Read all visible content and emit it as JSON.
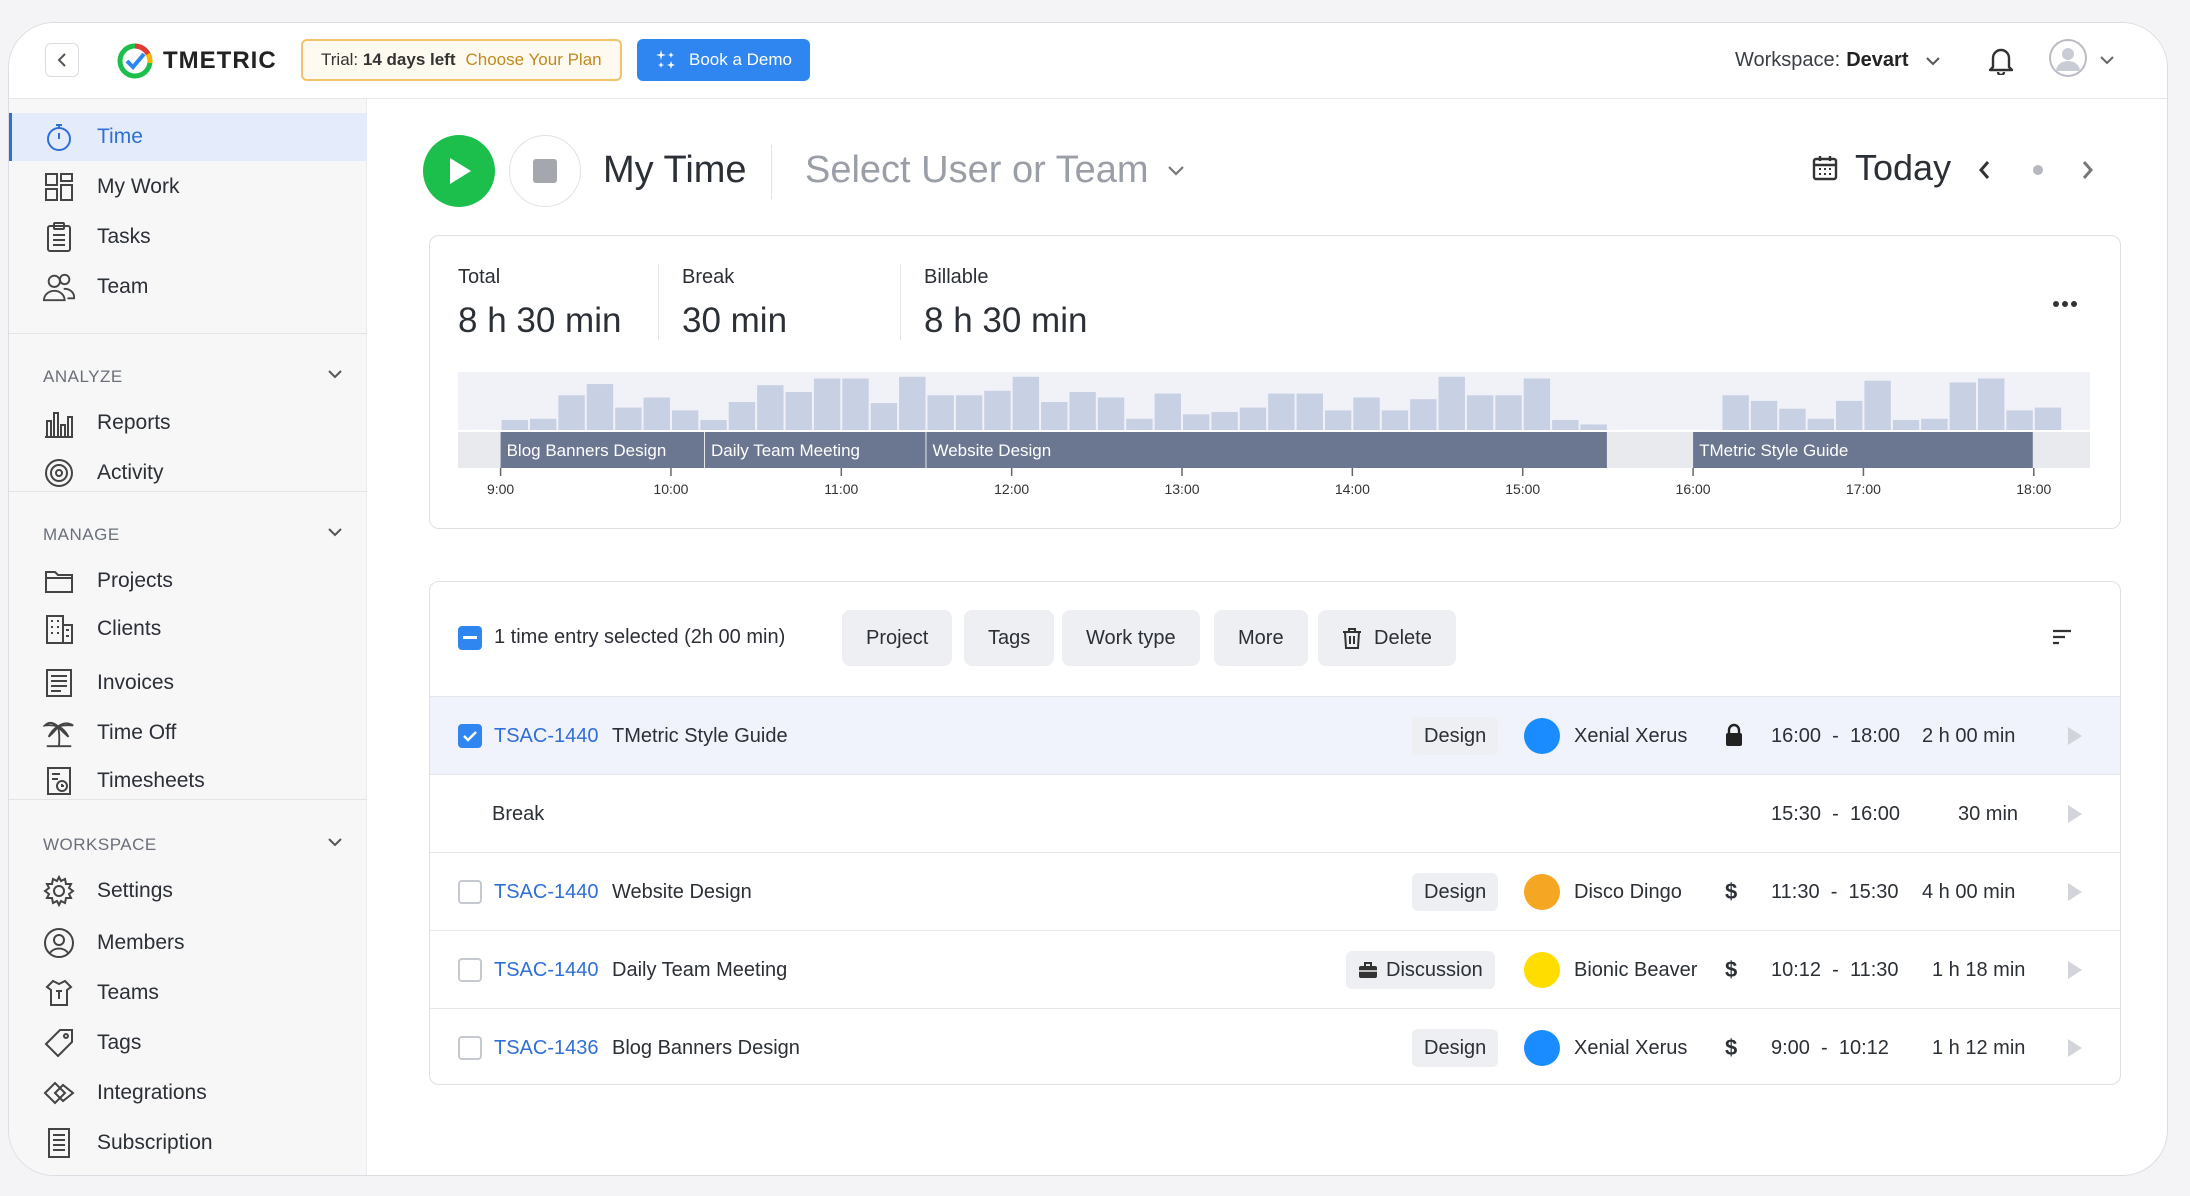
{
  "topbar": {
    "brand": "TMETRIC",
    "trial_prefix": "Trial:",
    "trial_days": "14 days left",
    "trial_link": "Choose Your Plan",
    "demo_label": "Book a Demo",
    "workspace_label": "Workspace:",
    "workspace_name": "Devart"
  },
  "sidebar": {
    "main": [
      {
        "label": "Time",
        "icon": "stopwatch-icon"
      },
      {
        "label": "My Work",
        "icon": "dashboard-icon"
      },
      {
        "label": "Tasks",
        "icon": "clipboard-icon"
      },
      {
        "label": "Team",
        "icon": "people-icon"
      }
    ],
    "analyze_title": "ANALYZE",
    "analyze": [
      {
        "label": "Reports",
        "icon": "bar-chart-icon"
      },
      {
        "label": "Activity",
        "icon": "activity-icon"
      }
    ],
    "manage_title": "MANAGE",
    "manage": [
      {
        "label": "Projects",
        "icon": "folder-icon"
      },
      {
        "label": "Clients",
        "icon": "building-icon"
      },
      {
        "label": "Invoices",
        "icon": "invoice-icon"
      },
      {
        "label": "Time Off",
        "icon": "palm-tree-icon"
      },
      {
        "label": "Timesheets",
        "icon": "timesheet-icon"
      }
    ],
    "workspace_title": "WORKSPACE",
    "workspace": [
      {
        "label": "Settings",
        "icon": "gear-icon"
      },
      {
        "label": "Members",
        "icon": "member-icon"
      },
      {
        "label": "Teams",
        "icon": "teams-icon"
      },
      {
        "label": "Tags",
        "icon": "tag-icon"
      },
      {
        "label": "Integrations",
        "icon": "integrations-icon"
      },
      {
        "label": "Subscription",
        "icon": "subscription-icon"
      }
    ]
  },
  "header": {
    "title": "My Time",
    "user_select": "Select User or Team",
    "date_label": "Today"
  },
  "summary": {
    "total_label": "Total",
    "total_value": "8 h 30 min",
    "break_label": "Break",
    "break_value": "30 min",
    "billable_label": "Billable",
    "billable_value": "8 h 30 min"
  },
  "chart_data": {
    "type": "bar",
    "title": "",
    "xlabel": "",
    "ylabel": "",
    "tick_labels": [
      "9:00",
      "10:00",
      "11:00",
      "12:00",
      "13:00",
      "14:00",
      "15:00",
      "16:00",
      "17:00",
      "18:00"
    ],
    "x_range_hours": [
      8.75,
      18.33
    ],
    "activity_bars": {
      "start_hour": 9.0,
      "slot_minutes": 10,
      "values": [
        0.18,
        0.2,
        0.62,
        0.82,
        0.4,
        0.58,
        0.35,
        0.18,
        0.5,
        0.8,
        0.68,
        0.92,
        0.92,
        0.48,
        0.95,
        0.62,
        0.62,
        0.7,
        0.95,
        0.5,
        0.68,
        0.58,
        0.2,
        0.65,
        0.28,
        0.32,
        0.4,
        0.65,
        0.65,
        0.35,
        0.58,
        0.35,
        0.55,
        0.95,
        0.62,
        0.62,
        0.92,
        0.18,
        0.1,
        null,
        null,
        null,
        null,
        0.62,
        0.52,
        0.38,
        0.2,
        0.52,
        0.88,
        0.18,
        0.2,
        0.85,
        0.92,
        0.35,
        0.4
      ]
    },
    "segments": [
      {
        "label": "Blog Banners Design",
        "start": "9:00",
        "end": "10:12"
      },
      {
        "label": "Daily Team Meeting",
        "start": "10:12",
        "end": "11:30"
      },
      {
        "label": "Website Design",
        "start": "11:30",
        "end": "15:30"
      },
      {
        "label": "TMetric Style Guide",
        "start": "16:00",
        "end": "18:00"
      }
    ]
  },
  "toolbar": {
    "selected_text": "1 time entry selected (2h 00 min)",
    "project": "Project",
    "tags": "Tags",
    "work_type": "Work type",
    "more": "More",
    "delete": "Delete"
  },
  "entries": [
    {
      "id": "TSAC-1440",
      "name": "TMetric Style Guide",
      "tag": "Design",
      "person": "Xenial Xerus",
      "color": "#1a8cff",
      "billing": "lock",
      "start": "16:00",
      "end": "18:00",
      "duration": "2 h 00 min",
      "checked": true
    },
    {
      "id": "",
      "name": "Break",
      "tag": "",
      "person": "",
      "color": "",
      "billing": "",
      "start": "15:30",
      "end": "16:00",
      "duration": "30 min",
      "checked": false
    },
    {
      "id": "TSAC-1440",
      "name": "Website Design",
      "tag": "Design",
      "person": "Disco Dingo",
      "color": "#f5a623",
      "billing": "$",
      "start": "11:30",
      "end": "15:30",
      "duration": "4 h 00 min",
      "checked": false
    },
    {
      "id": "TSAC-1440",
      "name": "Daily Team Meeting",
      "tag": "Discussion",
      "person": "Bionic Beaver",
      "color": "#ffdd00",
      "billing": "$",
      "start": "10:12",
      "end": "11:30",
      "duration": "1 h 18 min",
      "checked": false
    },
    {
      "id": "TSAC-1436",
      "name": "Blog Banners Design",
      "tag": "Design",
      "person": "Xenial Xerus",
      "color": "#1a8cff",
      "billing": "$",
      "start": "9:00",
      "end": "10:12",
      "duration": "1 h 12 min",
      "checked": false
    }
  ],
  "colors": {
    "accent": "#2f86f0",
    "play": "#1cbf4c",
    "bar": "#c8d0e4",
    "segment": "#6b7690"
  }
}
